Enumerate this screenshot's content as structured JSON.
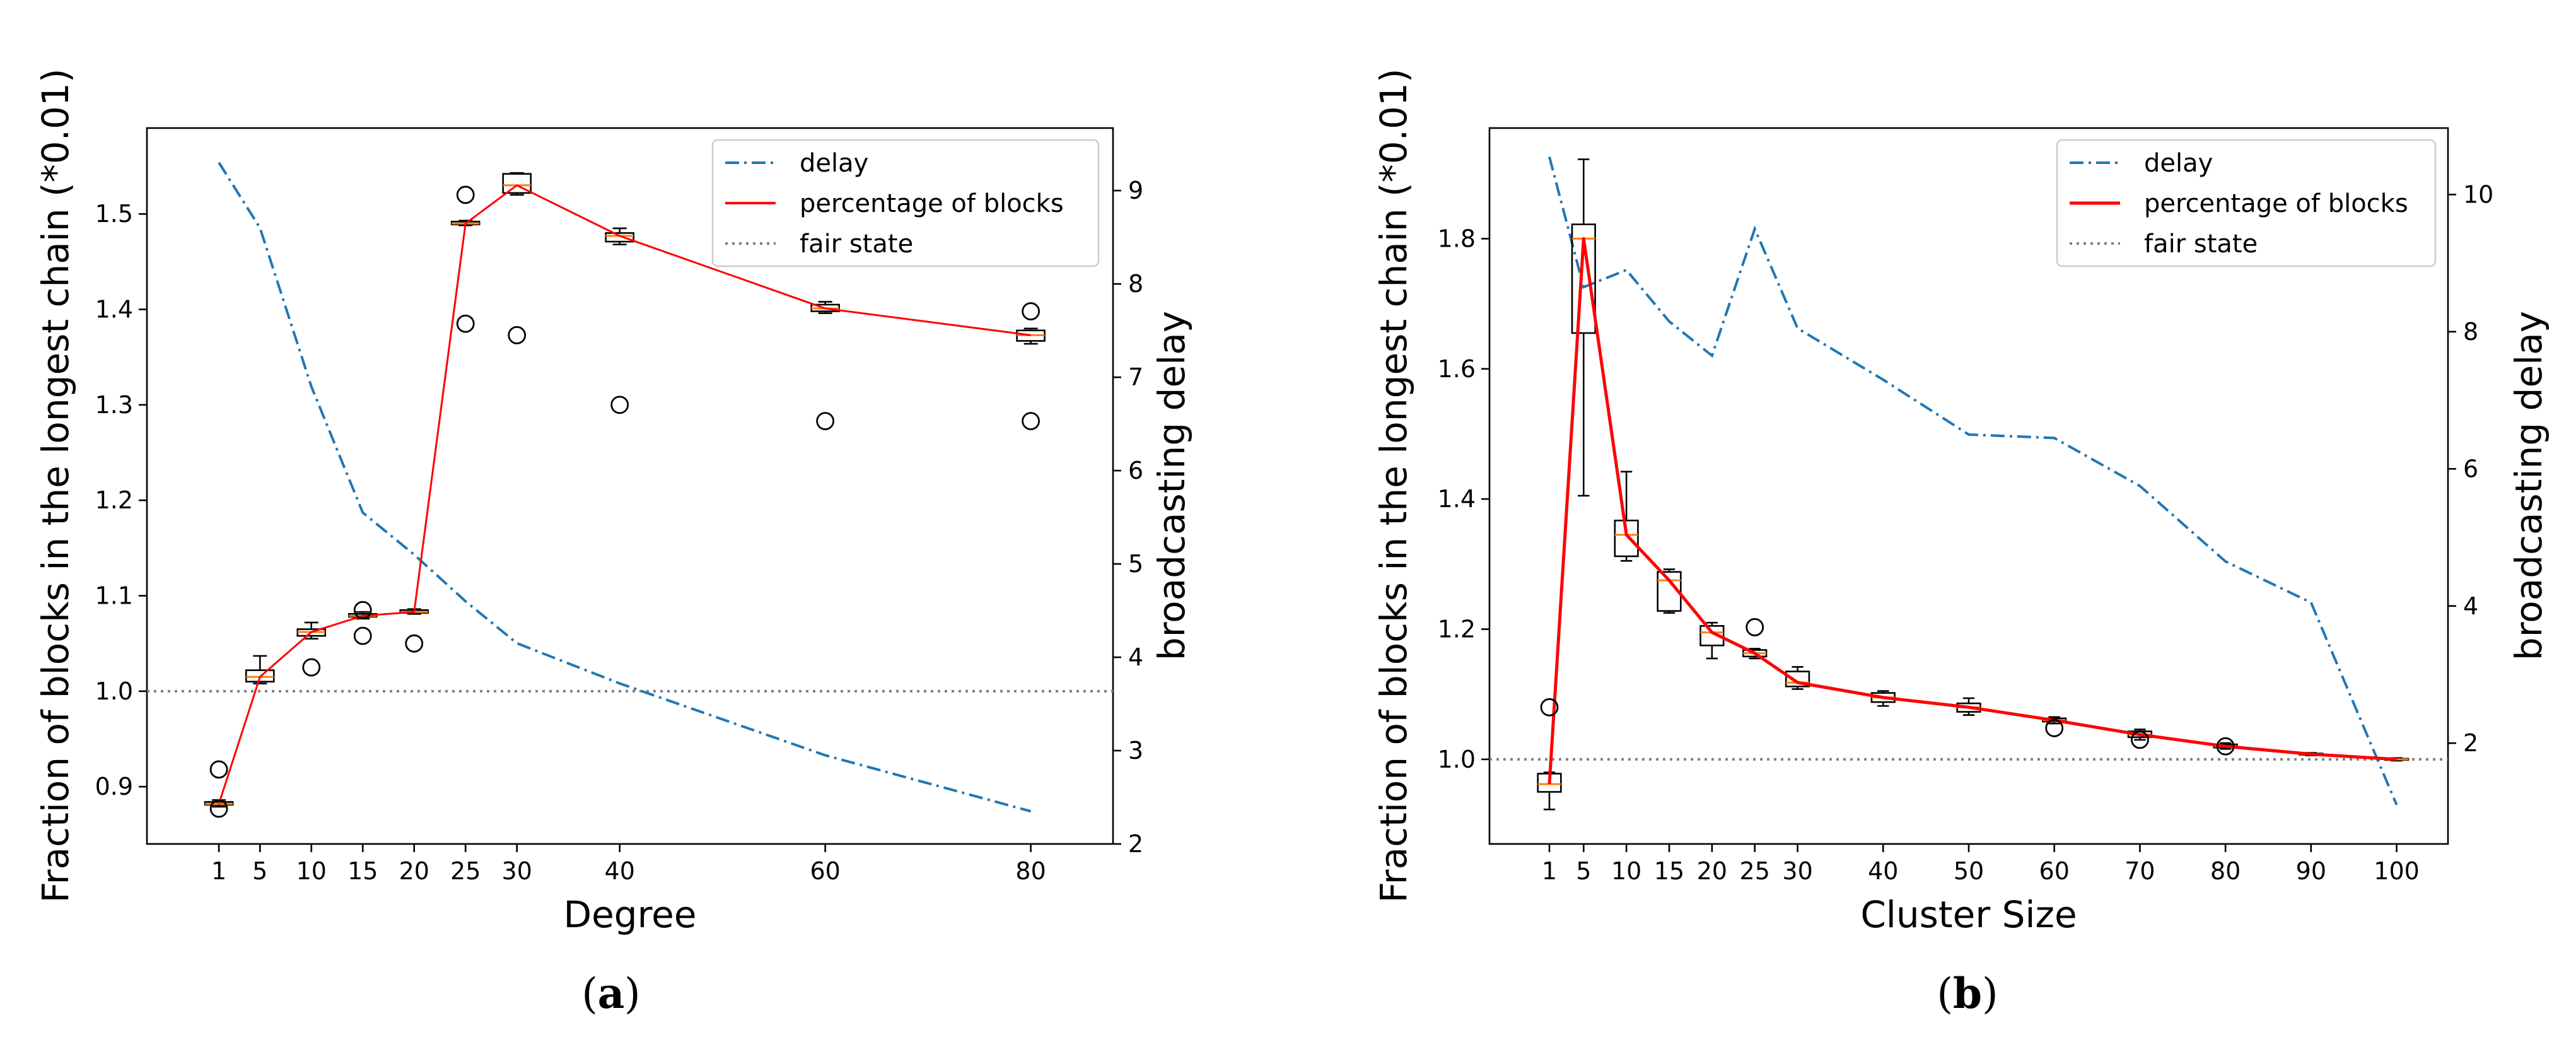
{
  "colors": {
    "delay": "#1f77b4",
    "percentage": "#ff0000",
    "fair": "#808080",
    "median": "#ff7f0e",
    "box": "#000000"
  },
  "legend": {
    "delay": "delay",
    "percentage": "percentage of blocks",
    "fair": "fair state"
  },
  "chart_data": [
    {
      "panel_label": "a",
      "type": "line",
      "xlabel": "Degree",
      "ylabel": "Fraction of blocks in the longest chain (*0.01)",
      "y2label": "broadcasting delay",
      "xlim": [
        -6,
        88
      ],
      "ylim": [
        0.84,
        1.59
      ],
      "y2lim": [
        2,
        9.67
      ],
      "x_ticks": [
        1,
        5,
        10,
        15,
        20,
        25,
        30,
        40,
        60,
        80
      ],
      "y_ticks": [
        0.9,
        1.0,
        1.1,
        1.2,
        1.3,
        1.4,
        1.5
      ],
      "y_tick_labels": [
        "0.9",
        "1.0",
        "1.1",
        "1.2",
        "1.3",
        "1.4",
        "1.5"
      ],
      "y2_ticks": [
        2,
        3,
        4,
        5,
        6,
        7,
        8,
        9
      ],
      "y2_tick_labels": [
        "2",
        "3",
        "4",
        "5",
        "6",
        "7",
        "8",
        "9"
      ],
      "fair_state": 1.0,
      "line_width": 3,
      "box_half_width": 1.35,
      "delay": {
        "x": [
          1,
          5,
          10,
          15,
          20,
          25,
          30,
          40,
          60,
          80
        ],
        "y": [
          9.3,
          8.6,
          6.9,
          5.55,
          5.1,
          4.6,
          4.15,
          3.72,
          2.95,
          2.35
        ]
      },
      "percentage": {
        "x": [
          1,
          5,
          10,
          15,
          20,
          25,
          30,
          40,
          60,
          80
        ],
        "y": [
          0.882,
          1.015,
          1.062,
          1.079,
          1.083,
          1.49,
          1.53,
          1.477,
          1.401,
          1.373
        ]
      },
      "boxes": [
        {
          "x": 1,
          "q1": 0.881,
          "q3": 0.884,
          "med": 0.882,
          "wlo": 0.879,
          "whi": 0.886
        },
        {
          "x": 5,
          "q1": 1.01,
          "q3": 1.022,
          "med": 1.015,
          "wlo": 1.008,
          "whi": 1.037
        },
        {
          "x": 10,
          "q1": 1.058,
          "q3": 1.065,
          "med": 1.062,
          "wlo": 1.055,
          "whi": 1.072
        },
        {
          "x": 15,
          "q1": 1.078,
          "q3": 1.081,
          "med": 1.079,
          "wlo": 1.076,
          "whi": 1.083
        },
        {
          "x": 20,
          "q1": 1.082,
          "q3": 1.085,
          "med": 1.083,
          "wlo": 1.081,
          "whi": 1.086
        },
        {
          "x": 25,
          "q1": 1.489,
          "q3": 1.492,
          "med": 1.49,
          "wlo": 1.488,
          "whi": 1.493
        },
        {
          "x": 30,
          "q1": 1.522,
          "q3": 1.542,
          "med": 1.53,
          "wlo": 1.52,
          "whi": 1.543
        },
        {
          "x": 40,
          "q1": 1.471,
          "q3": 1.48,
          "med": 1.477,
          "wlo": 1.468,
          "whi": 1.485
        },
        {
          "x": 60,
          "q1": 1.398,
          "q3": 1.405,
          "med": 1.401,
          "wlo": 1.396,
          "whi": 1.408
        },
        {
          "x": 80,
          "q1": 1.367,
          "q3": 1.378,
          "med": 1.373,
          "wlo": 1.364,
          "whi": 1.38
        }
      ],
      "outliers": [
        {
          "x": 1,
          "y": 0.918
        },
        {
          "x": 1,
          "y": 0.877
        },
        {
          "x": 10,
          "y": 1.025
        },
        {
          "x": 15,
          "y": 1.085
        },
        {
          "x": 15,
          "y": 1.058
        },
        {
          "x": 20,
          "y": 1.05
        },
        {
          "x": 25,
          "y": 1.52
        },
        {
          "x": 25,
          "y": 1.385
        },
        {
          "x": 30,
          "y": 1.373
        },
        {
          "x": 40,
          "y": 1.3
        },
        {
          "x": 60,
          "y": 1.283
        },
        {
          "x": 80,
          "y": 1.398
        },
        {
          "x": 80,
          "y": 1.283
        }
      ]
    },
    {
      "panel_label": "b",
      "type": "line",
      "xlabel": "Cluster Size",
      "ylabel": "Fraction of blocks in the longest chain (*0.01)",
      "y2label": "broadcasting delay",
      "xlim": [
        -6,
        106
      ],
      "ylim": [
        0.87,
        1.97
      ],
      "y2lim": [
        0.53,
        10.97
      ],
      "x_ticks": [
        1,
        5,
        10,
        15,
        20,
        25,
        30,
        40,
        50,
        60,
        70,
        80,
        90,
        100
      ],
      "y_ticks": [
        1.0,
        1.2,
        1.4,
        1.6,
        1.8
      ],
      "y_tick_labels": [
        "1.0",
        "1.2",
        "1.4",
        "1.6",
        "1.8"
      ],
      "y2_ticks": [
        2,
        4,
        6,
        8,
        10
      ],
      "y2_tick_labels": [
        "2",
        "4",
        "6",
        "8",
        "10"
      ],
      "fair_state": 1.0,
      "line_width": 5,
      "box_half_width": 1.35,
      "delay": {
        "x": [
          1,
          5,
          10,
          15,
          20,
          25,
          30,
          40,
          50,
          60,
          70,
          80,
          90,
          100
        ],
        "y": [
          10.55,
          8.65,
          8.9,
          8.15,
          7.65,
          9.5,
          8.05,
          7.3,
          6.5,
          6.45,
          5.75,
          4.65,
          4.05,
          1.1
        ]
      },
      "percentage": {
        "x": [
          1,
          5,
          10,
          15,
          20,
          25,
          30,
          40,
          50,
          60,
          70,
          80,
          90,
          100
        ],
        "y": [
          0.962,
          1.8,
          1.345,
          1.275,
          1.195,
          1.163,
          1.118,
          1.095,
          1.08,
          1.06,
          1.038,
          1.02,
          1.008,
          1.0
        ]
      },
      "boxes": [
        {
          "x": 1,
          "q1": 0.95,
          "q3": 0.978,
          "med": 0.962,
          "wlo": 0.923,
          "whi": 0.98
        },
        {
          "x": 5,
          "q1": 1.655,
          "q3": 1.822,
          "med": 1.8,
          "wlo": 1.405,
          "whi": 1.922
        },
        {
          "x": 10,
          "q1": 1.312,
          "q3": 1.367,
          "med": 1.345,
          "wlo": 1.305,
          "whi": 1.442
        },
        {
          "x": 15,
          "q1": 1.228,
          "q3": 1.288,
          "med": 1.275,
          "wlo": 1.225,
          "whi": 1.292
        },
        {
          "x": 20,
          "q1": 1.175,
          "q3": 1.205,
          "med": 1.195,
          "wlo": 1.155,
          "whi": 1.21
        },
        {
          "x": 25,
          "q1": 1.158,
          "q3": 1.168,
          "med": 1.163,
          "wlo": 1.155,
          "whi": 1.17
        },
        {
          "x": 30,
          "q1": 1.112,
          "q3": 1.135,
          "med": 1.118,
          "wlo": 1.108,
          "whi": 1.142
        },
        {
          "x": 40,
          "q1": 1.088,
          "q3": 1.102,
          "med": 1.095,
          "wlo": 1.082,
          "whi": 1.105
        },
        {
          "x": 50,
          "q1": 1.073,
          "q3": 1.086,
          "med": 1.08,
          "wlo": 1.068,
          "whi": 1.094
        },
        {
          "x": 60,
          "q1": 1.058,
          "q3": 1.063,
          "med": 1.06,
          "wlo": 1.055,
          "whi": 1.065
        },
        {
          "x": 70,
          "q1": 1.034,
          "q3": 1.043,
          "med": 1.038,
          "wlo": 1.03,
          "whi": 1.046
        },
        {
          "x": 80,
          "q1": 1.018,
          "q3": 1.023,
          "med": 1.02,
          "wlo": 1.016,
          "whi": 1.025
        },
        {
          "x": 90,
          "q1": 1.007,
          "q3": 1.009,
          "med": 1.008,
          "wlo": 1.006,
          "whi": 1.01
        },
        {
          "x": 100,
          "q1": 0.999,
          "q3": 1.001,
          "med": 1.0,
          "wlo": 0.998,
          "whi": 1.002
        }
      ],
      "outliers": [
        {
          "x": 1,
          "y": 1.08
        },
        {
          "x": 25,
          "y": 1.203
        },
        {
          "x": 60,
          "y": 1.048
        },
        {
          "x": 70,
          "y": 1.03
        },
        {
          "x": 80,
          "y": 1.02
        }
      ]
    }
  ]
}
